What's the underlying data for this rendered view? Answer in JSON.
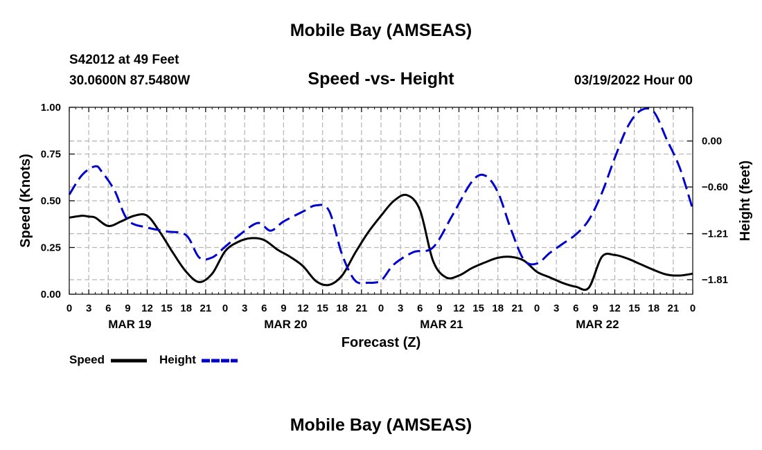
{
  "header": {
    "title": "Mobile Bay (AMSEAS)",
    "station": "S42012 at 49 Feet",
    "coords": "30.0600N  87.5480W",
    "subtitle": "Speed -vs- Height",
    "timestamp": "03/19/2022 Hour 00"
  },
  "footer": {
    "title": "Mobile Bay (AMSEAS)"
  },
  "colors": {
    "speed": "#000000",
    "height": "#0000cc",
    "grid": "#b8b8b8"
  },
  "chart_data": {
    "type": "line",
    "title": "Speed -vs- Height",
    "xlabel": "Forecast (Z)",
    "ylabel": "Speed (Knots)",
    "y2label": "Height (feet)",
    "xlim": [
      0,
      96
    ],
    "ylim": [
      0,
      1.0
    ],
    "y2lim": [
      -2.0,
      0.44
    ],
    "y_ticks": [
      "0.00",
      "0.25",
      "0.50",
      "0.75",
      "1.00"
    ],
    "y_tick_values": [
      0,
      0.25,
      0.5,
      0.75,
      1.0
    ],
    "y2_ticks": [
      "0.00",
      "−0.60",
      "−1.21",
      "−1.81"
    ],
    "y2_tick_values": [
      0.0,
      -0.6,
      -1.21,
      -1.81
    ],
    "x_tick_labels": [
      "0",
      "3",
      "6",
      "9",
      "12",
      "15",
      "18",
      "21",
      "0",
      "3",
      "6",
      "9",
      "12",
      "15",
      "18",
      "21",
      "0",
      "3",
      "6",
      "9",
      "12",
      "15",
      "18",
      "21",
      "0",
      "3",
      "6",
      "9",
      "12",
      "15",
      "18",
      "21",
      "0"
    ],
    "day_labels": [
      {
        "label": "MAR 19",
        "hour": 9
      },
      {
        "label": "MAR 20",
        "hour": 33
      },
      {
        "label": "MAR 21",
        "hour": 57
      },
      {
        "label": "MAR 22",
        "hour": 81
      }
    ],
    "grid": true,
    "legend": "bottom-left",
    "series": [
      {
        "name": "Speed",
        "axis": "left",
        "style": "solid",
        "hours": [
          0,
          2,
          3,
          4,
          6,
          8,
          10,
          12,
          14,
          16,
          18,
          20,
          22,
          24,
          26,
          28,
          30,
          32,
          34,
          36,
          38,
          40,
          42,
          44,
          46,
          48,
          50,
          52,
          54,
          56,
          58,
          60,
          62,
          64,
          66,
          68,
          70,
          72,
          74,
          76,
          78,
          80,
          82,
          84,
          86,
          88,
          90,
          92,
          94,
          96
        ],
        "values": [
          0.41,
          0.42,
          0.415,
          0.41,
          0.365,
          0.39,
          0.42,
          0.42,
          0.33,
          0.22,
          0.12,
          0.065,
          0.11,
          0.23,
          0.28,
          0.3,
          0.29,
          0.24,
          0.2,
          0.15,
          0.07,
          0.05,
          0.1,
          0.22,
          0.33,
          0.42,
          0.5,
          0.53,
          0.45,
          0.18,
          0.09,
          0.1,
          0.14,
          0.17,
          0.195,
          0.2,
          0.18,
          0.12,
          0.09,
          0.06,
          0.04,
          0.035,
          0.2,
          0.21,
          0.19,
          0.16,
          0.13,
          0.105,
          0.1,
          0.11
        ]
      },
      {
        "name": "Height",
        "axis": "right",
        "style": "dashed",
        "hours": [
          0,
          2,
          4,
          5,
          7,
          9,
          12,
          15,
          18,
          20,
          22,
          24,
          26,
          29,
          31,
          33,
          36,
          38,
          40,
          42,
          44,
          46,
          48,
          50,
          53,
          56,
          59,
          62,
          64,
          66,
          68,
          70,
          72,
          74,
          76,
          78,
          80,
          82,
          84,
          86,
          88,
          90,
          92,
          94,
          96
        ],
        "values": [
          -0.7,
          -0.44,
          -0.33,
          -0.4,
          -0.65,
          -1.03,
          -1.13,
          -1.18,
          -1.23,
          -1.52,
          -1.52,
          -1.38,
          -1.24,
          -1.07,
          -1.17,
          -1.05,
          -0.92,
          -0.84,
          -0.91,
          -1.48,
          -1.82,
          -1.85,
          -1.82,
          -1.61,
          -1.45,
          -1.39,
          -0.97,
          -0.53,
          -0.45,
          -0.67,
          -1.15,
          -1.55,
          -1.6,
          -1.46,
          -1.34,
          -1.22,
          -1.03,
          -0.68,
          -0.22,
          0.19,
          0.4,
          0.38,
          0.02,
          -0.35,
          -0.89
        ]
      }
    ]
  }
}
